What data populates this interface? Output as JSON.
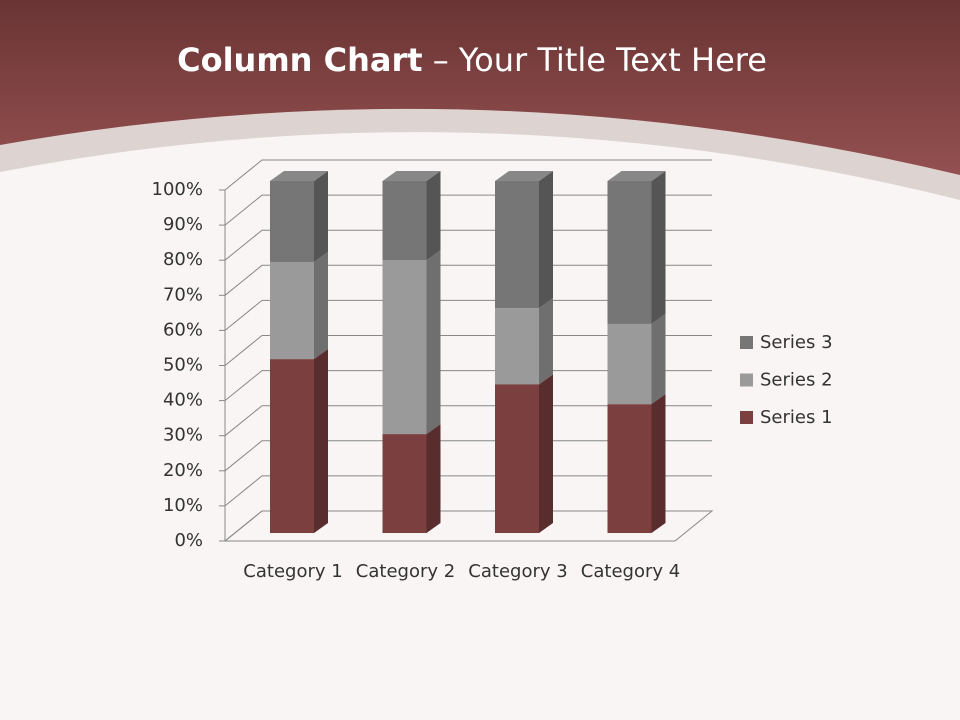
{
  "chart_data": {
    "type": "stacked-column-3d",
    "title_parts": [
      "Column Chart",
      " – Your Title Text Here"
    ],
    "categories": [
      "Category 1",
      "Category 2",
      "Category 3",
      "Category 4"
    ],
    "series": [
      {
        "name": "Series 1",
        "color": "#7b3f3f",
        "values": [
          49.4,
          28.1,
          42.2,
          36.6
        ]
      },
      {
        "name": "Series 2",
        "color": "#9a9a9a",
        "values": [
          27.6,
          49.4,
          21.7,
          22.8
        ]
      },
      {
        "name": "Series 3",
        "color": "#767676",
        "values": [
          23.0,
          22.5,
          36.1,
          40.6
        ]
      }
    ],
    "ylim": [
      0,
      100
    ],
    "yticks": [
      {
        "value": 0,
        "label": "0%"
      },
      {
        "value": 10,
        "label": "10%"
      },
      {
        "value": 20,
        "label": "20%"
      },
      {
        "value": 30,
        "label": "30%"
      },
      {
        "value": 40,
        "label": "40%"
      },
      {
        "value": 50,
        "label": "50%"
      },
      {
        "value": 60,
        "label": "60%"
      },
      {
        "value": 70,
        "label": "70%"
      },
      {
        "value": 80,
        "label": "80%"
      },
      {
        "value": 90,
        "label": "90%"
      },
      {
        "value": 100,
        "label": "100%"
      }
    ],
    "grid": true,
    "legend": "right"
  }
}
